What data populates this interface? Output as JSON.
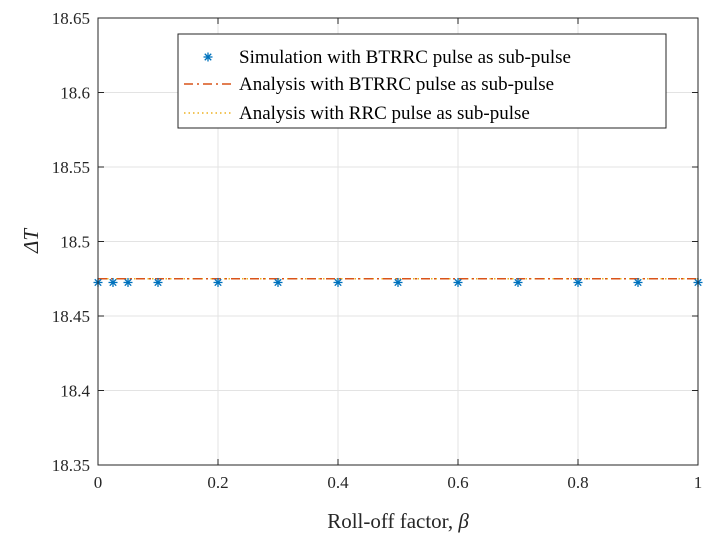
{
  "chart_data": {
    "type": "line",
    "title": "",
    "xlabel": "Roll-off factor, ",
    "xlabel_symbol": "β",
    "ylabel": "ΔT",
    "xlim": [
      0,
      1
    ],
    "ylim": [
      18.35,
      18.65
    ],
    "xticks": [
      0,
      0.2,
      0.4,
      0.6,
      0.8,
      1
    ],
    "xtick_labels": [
      "0",
      "0.2",
      "0.4",
      "0.6",
      "0.8",
      "1"
    ],
    "yticks": [
      18.35,
      18.4,
      18.45,
      18.5,
      18.55,
      18.6,
      18.65
    ],
    "ytick_labels": [
      "18.35",
      "18.4",
      "18.45",
      "18.5",
      "18.55",
      "18.6",
      "18.65"
    ],
    "grid": true,
    "legend_position": "top-right",
    "series": [
      {
        "name": "Simulation with BTRRC pulse as sub-pulse",
        "style": "marker-star",
        "color": "#0072BD",
        "x": [
          0,
          0.025,
          0.05,
          0.1,
          0.2,
          0.3,
          0.4,
          0.5,
          0.6,
          0.7,
          0.8,
          0.9,
          1
        ],
        "y": [
          18.4725,
          18.4725,
          18.4725,
          18.4725,
          18.4725,
          18.4725,
          18.4725,
          18.4725,
          18.4725,
          18.4725,
          18.4725,
          18.4725,
          18.4725
        ]
      },
      {
        "name": "Analysis with BTRRC pulse as sub-pulse",
        "style": "dash-dot",
        "color": "#D95319",
        "x": [
          0,
          1
        ],
        "y": [
          18.475,
          18.475
        ]
      },
      {
        "name": "Analysis with RRC pulse as sub-pulse",
        "style": "dotted",
        "color": "#EDB120",
        "x": [
          0,
          1
        ],
        "y": [
          18.475,
          18.475
        ]
      }
    ]
  }
}
